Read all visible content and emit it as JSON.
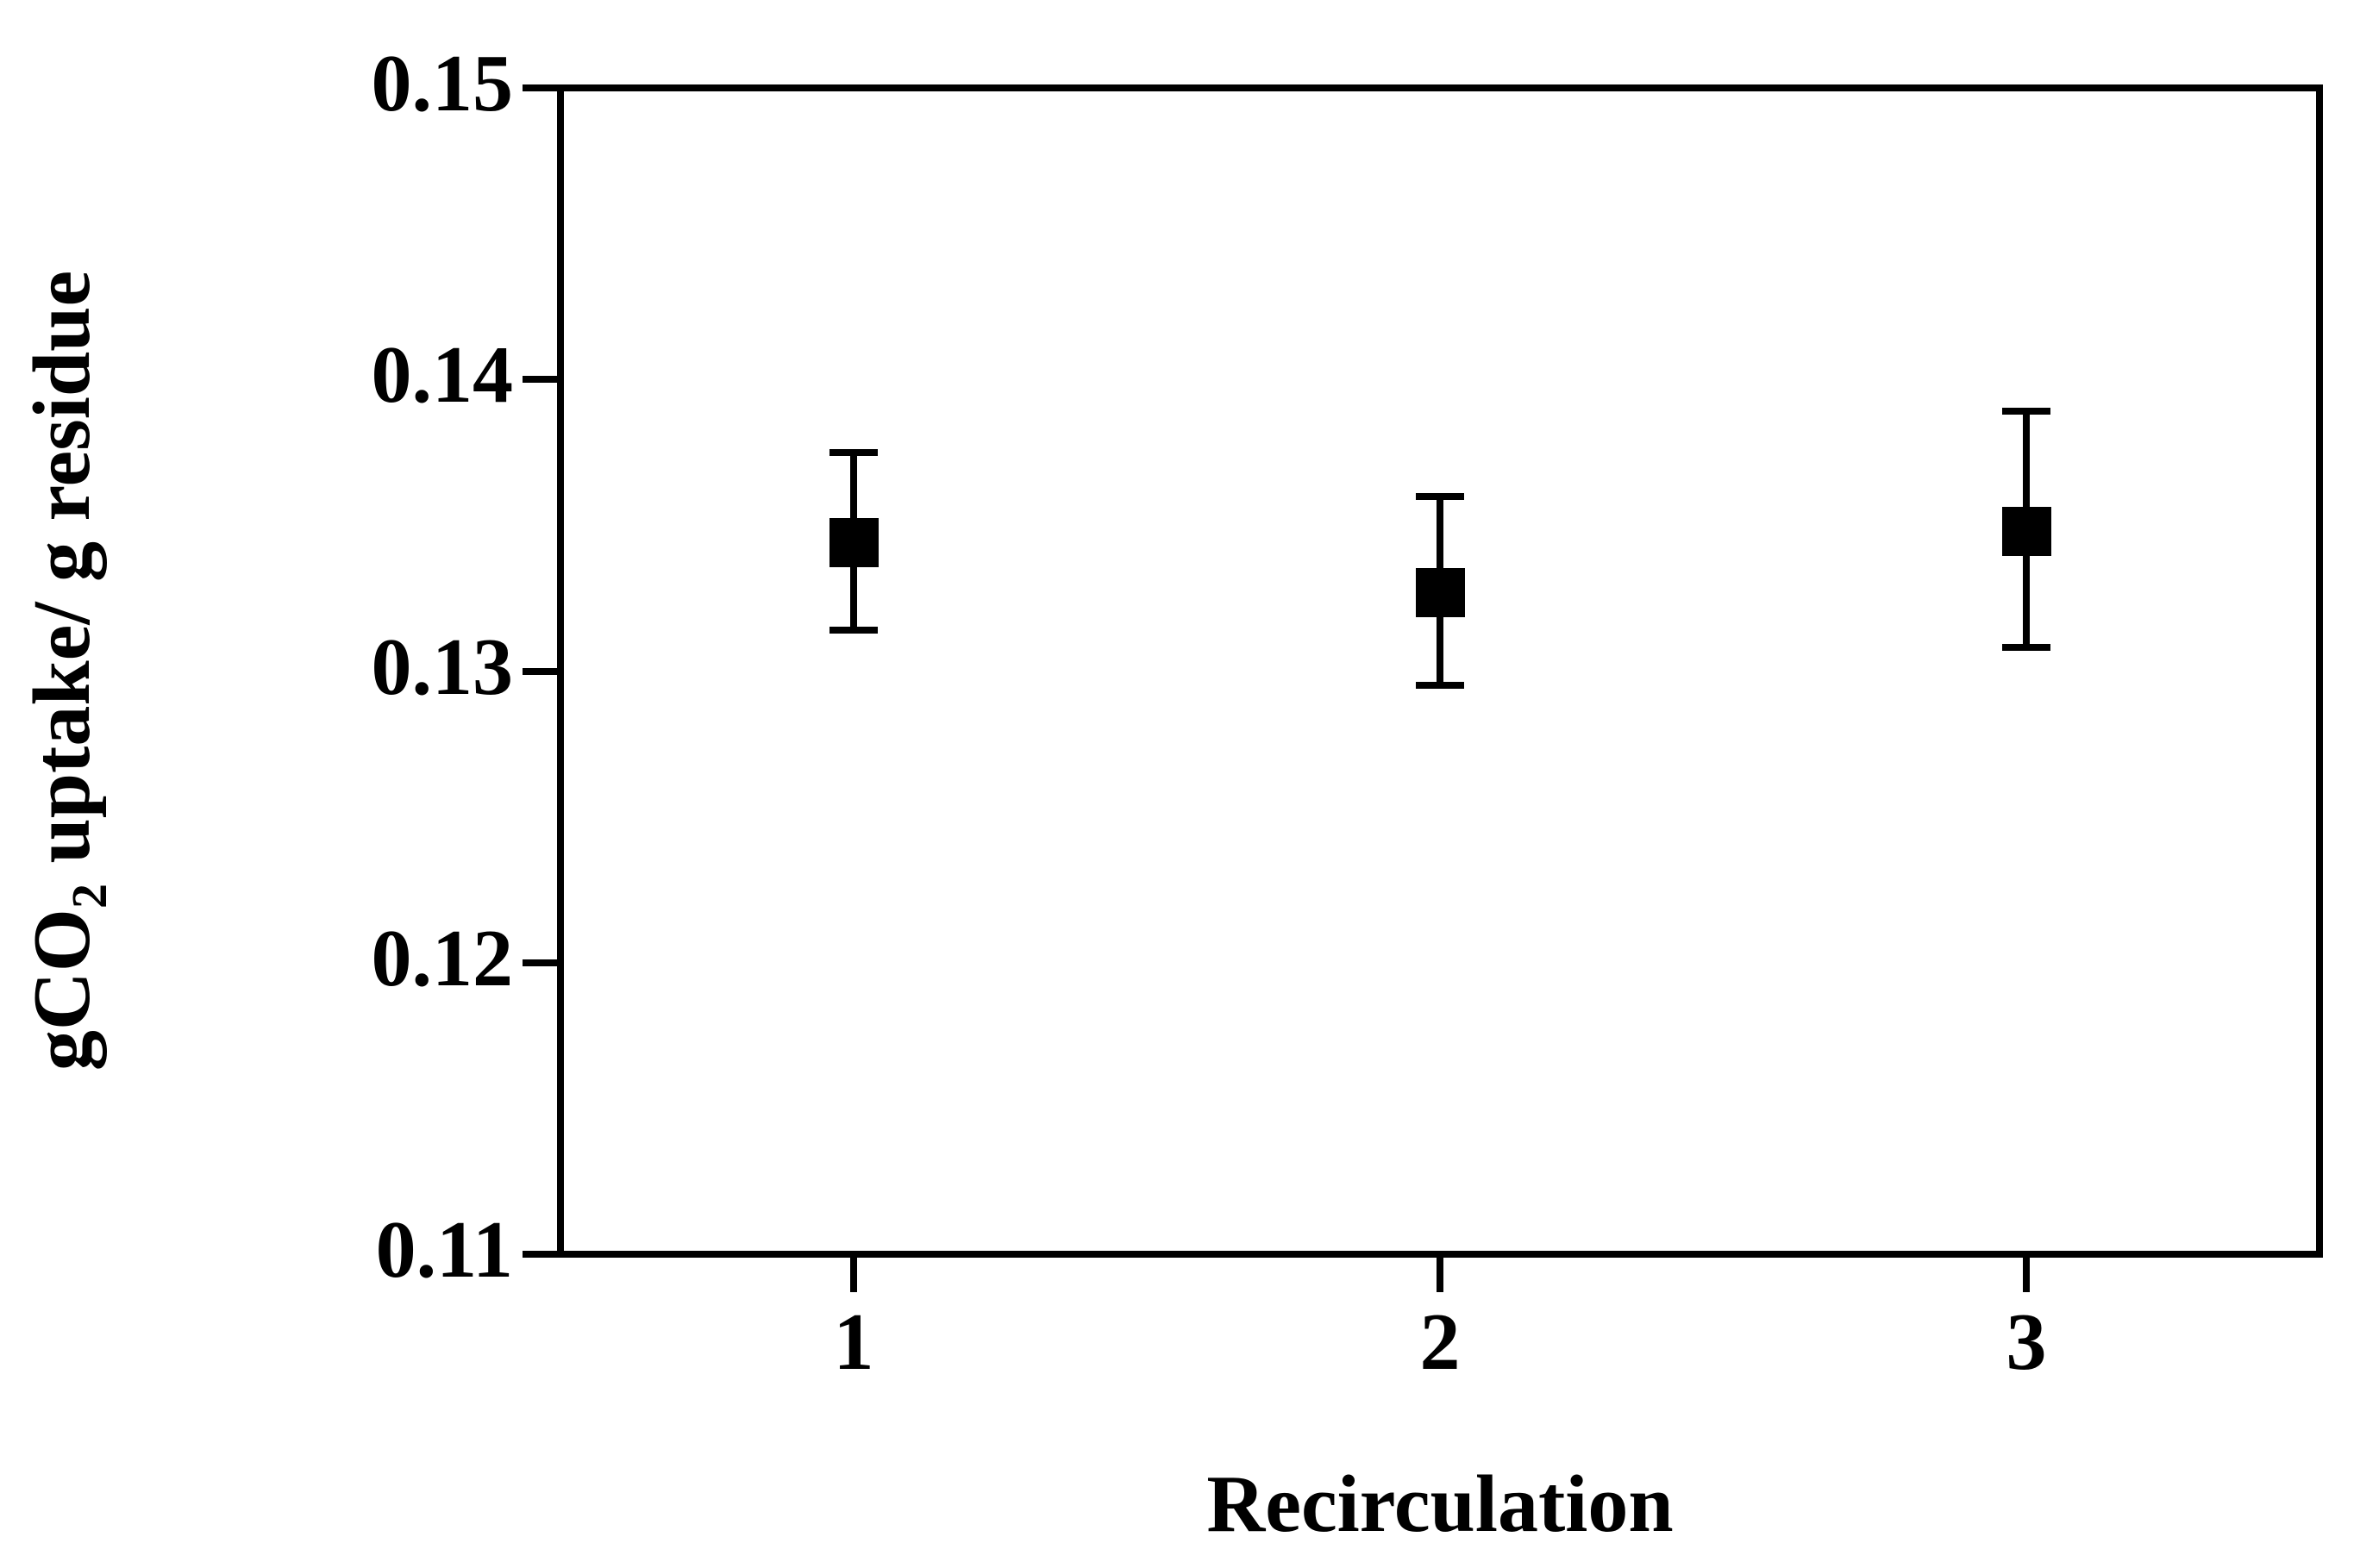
{
  "figure": {
    "background_color": "#ffffff",
    "ink_color": "#000000"
  },
  "chart_data": {
    "type": "scatter",
    "title": "",
    "xlabel": "Recirculation",
    "ylabel": "gCO2 uptake/ g residue",
    "ylabel_parts": [
      {
        "text": "gCO",
        "sub": false
      },
      {
        "text": "2",
        "sub": true
      },
      {
        "text": " uptake/ g residue",
        "sub": false
      }
    ],
    "categories": [
      "1",
      "2",
      "3"
    ],
    "x": [
      1,
      2,
      3
    ],
    "series": [
      {
        "marker": "filled-square",
        "color": "#000000",
        "values": [
          0.1344,
          0.1327,
          0.1348
        ],
        "error_upper": [
          0.1375,
          0.136,
          0.1389
        ],
        "error_lower": [
          0.1314,
          0.1295,
          0.1308
        ]
      }
    ],
    "xlim": [
      0.5,
      3.5
    ],
    "ylim": [
      0.11,
      0.15
    ],
    "yticks": {
      "values": [
        0.15,
        0.14,
        0.13,
        0.12,
        0.11
      ],
      "labels": [
        "0.15",
        "0.14",
        "0.13",
        "0.12",
        "0.11"
      ]
    },
    "grid": false,
    "legend": null,
    "plot_border": "full-rectangle",
    "tick_direction": "out"
  }
}
